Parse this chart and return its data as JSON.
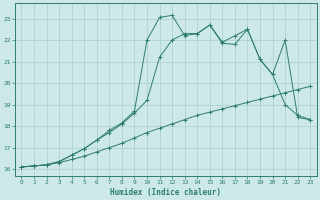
{
  "xlabel": "Humidex (Indice chaleur)",
  "background_color": "#cde8e8",
  "grid_color": "#a8cece",
  "line_color": "#2e7d6e",
  "xlim": [
    -0.5,
    23.5
  ],
  "ylim": [
    15.7,
    23.7
  ],
  "xticks": [
    0,
    1,
    2,
    3,
    4,
    5,
    6,
    7,
    8,
    9,
    10,
    11,
    12,
    13,
    14,
    15,
    16,
    17,
    18,
    19,
    20,
    21,
    22,
    23
  ],
  "yticks": [
    16,
    17,
    18,
    19,
    20,
    21,
    22,
    23
  ],
  "line1_x": [
    0,
    1,
    2,
    3,
    4,
    5,
    6,
    7,
    8,
    9,
    10,
    11,
    12,
    13,
    14,
    15,
    16,
    17,
    18,
    19,
    20,
    21,
    22,
    23
  ],
  "line1_y": [
    16.1,
    16.15,
    16.2,
    16.3,
    16.45,
    16.6,
    16.8,
    17.0,
    17.2,
    17.45,
    17.7,
    17.9,
    18.1,
    18.3,
    18.5,
    18.65,
    18.8,
    18.95,
    19.1,
    19.25,
    19.4,
    19.55,
    19.7,
    19.85
  ],
  "line2_x": [
    0,
    1,
    2,
    3,
    4,
    5,
    6,
    7,
    8,
    9,
    10,
    11,
    12,
    13,
    14,
    15,
    16,
    17,
    18,
    19,
    20,
    21,
    22,
    23
  ],
  "line2_y": [
    16.1,
    16.15,
    16.2,
    16.35,
    16.65,
    16.95,
    17.35,
    17.7,
    18.1,
    18.6,
    19.2,
    21.2,
    22.0,
    22.3,
    22.3,
    22.7,
    21.9,
    22.2,
    22.5,
    21.1,
    20.4,
    19.0,
    18.5,
    18.3
  ],
  "line3_x": [
    0,
    1,
    2,
    3,
    4,
    5,
    6,
    7,
    8,
    9,
    10,
    11,
    12,
    13,
    14,
    15,
    16,
    17,
    18,
    19,
    20,
    21,
    22,
    23
  ],
  "line3_y": [
    16.1,
    16.15,
    16.2,
    16.35,
    16.65,
    16.95,
    17.35,
    17.8,
    18.15,
    18.7,
    22.0,
    23.05,
    23.15,
    22.2,
    22.3,
    22.7,
    21.85,
    21.8,
    22.5,
    21.1,
    20.4,
    22.0,
    18.4,
    18.3
  ]
}
